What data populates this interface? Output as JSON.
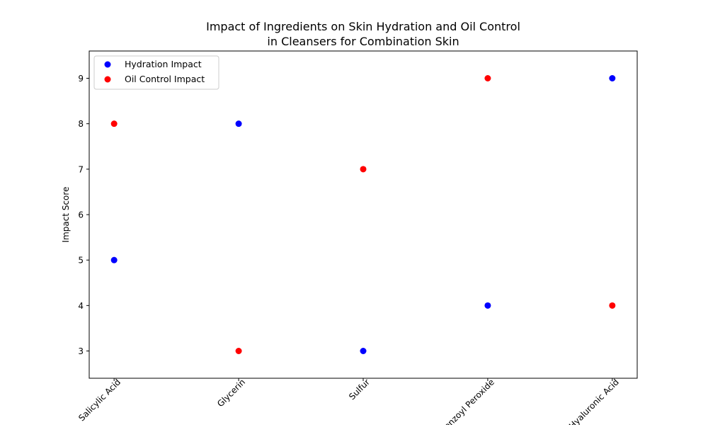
{
  "chart_data": {
    "type": "scatter",
    "title": "Impact of Ingredients on Skin Hydration and Oil Control\nin Cleansers for Combination Skin",
    "xlabel": "",
    "ylabel": "Impact Score",
    "categories": [
      "Salicylic Acid",
      "Glycerin",
      "Sulfur",
      "Benzoyl Peroxide",
      "Hyaluronic Acid"
    ],
    "ylim": [
      2.4,
      9.6
    ],
    "yticks": [
      3,
      4,
      5,
      6,
      7,
      8,
      9
    ],
    "grid": false,
    "legend_position": "top-left",
    "series": [
      {
        "name": "Hydration Impact",
        "color": "#0000ff",
        "values": [
          5,
          8,
          3,
          4,
          9
        ]
      },
      {
        "name": "Oil Control Impact",
        "color": "#ff0000",
        "values": [
          8,
          3,
          7,
          9,
          4
        ]
      }
    ]
  }
}
